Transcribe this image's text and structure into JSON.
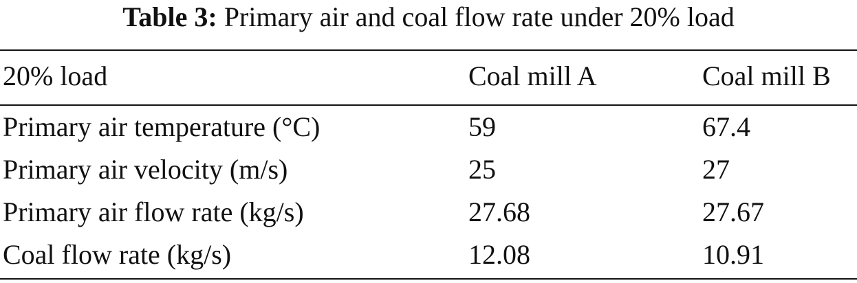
{
  "caption": {
    "label": "Table 3:",
    "text": "Primary air and coal flow rate under 20% load"
  },
  "table": {
    "headers": [
      "20% load",
      "Coal mill A",
      "Coal mill B"
    ],
    "rows": [
      [
        "Primary air temperature (°C)",
        "59",
        "67.4"
      ],
      [
        "Primary air velocity (m/s)",
        "25",
        "27"
      ],
      [
        "Primary air flow rate (kg/s)",
        "27.68",
        "27.67"
      ],
      [
        "Coal flow rate (kg/s)",
        "12.08",
        "10.91"
      ]
    ]
  }
}
